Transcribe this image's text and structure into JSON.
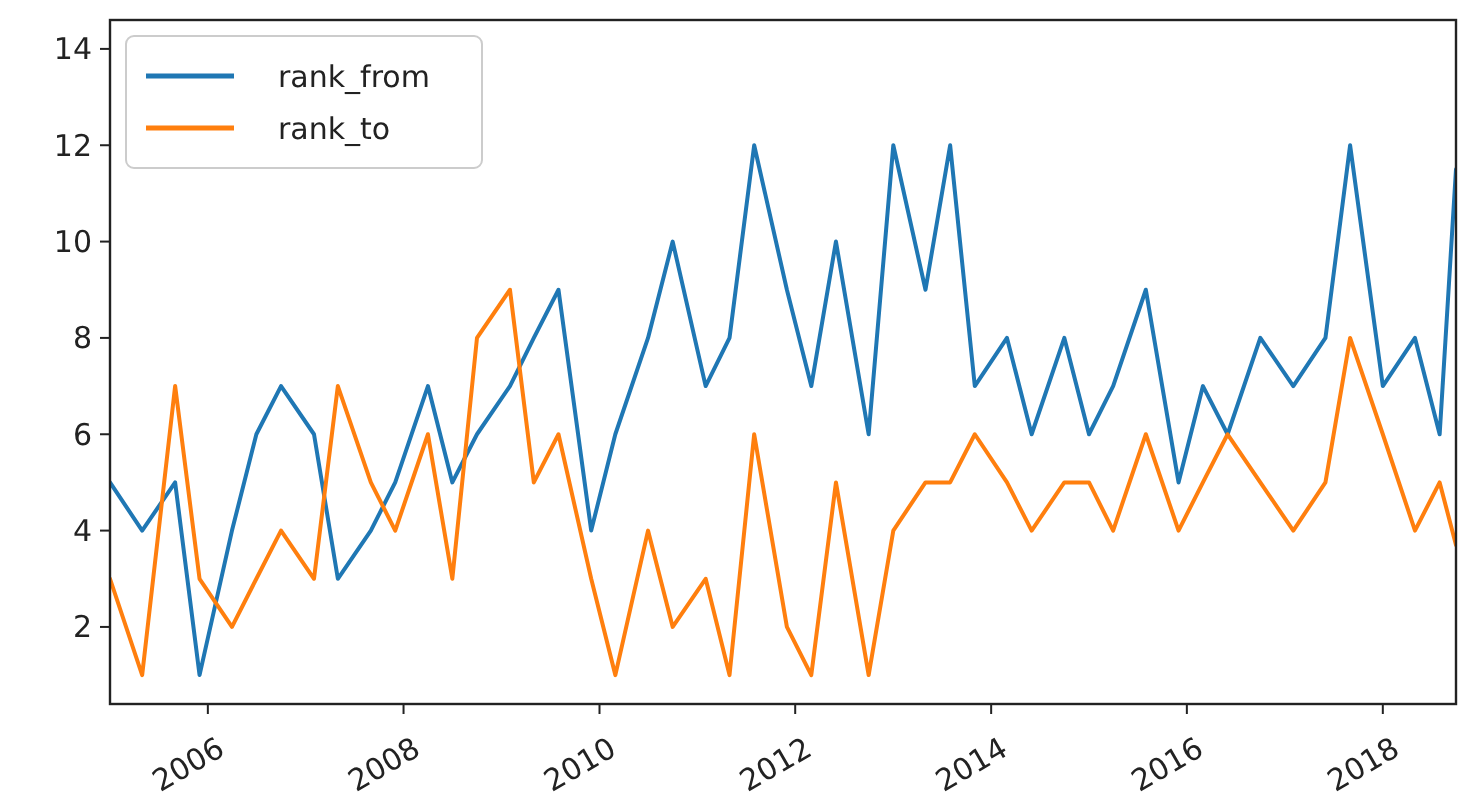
{
  "chart_data": {
    "type": "line",
    "x": [
      "2005-01",
      "2005-05",
      "2005-09",
      "2005-12",
      "2006-04",
      "2006-07",
      "2006-10",
      "2007-02",
      "2007-05",
      "2007-09",
      "2007-12",
      "2008-04",
      "2008-07",
      "2008-10",
      "2009-02",
      "2009-05",
      "2009-08",
      "2009-12",
      "2010-03",
      "2010-07",
      "2010-10",
      "2011-02",
      "2011-05",
      "2011-08",
      "2011-12",
      "2012-03",
      "2012-06",
      "2012-10",
      "2013-01",
      "2013-05",
      "2013-08",
      "2013-11",
      "2014-03",
      "2014-06",
      "2014-10",
      "2015-01",
      "2015-04",
      "2015-08",
      "2015-12",
      "2016-03",
      "2016-06",
      "2016-10",
      "2017-02",
      "2017-06",
      "2017-09",
      "2018-01",
      "2018-05",
      "2018-08",
      "2018-10"
    ],
    "series": [
      {
        "name": "rank_from",
        "color": "#1f77b4",
        "values": [
          5,
          4,
          5,
          1,
          4,
          6,
          7,
          6,
          3,
          4,
          5,
          7,
          5,
          6,
          7,
          8,
          9,
          4,
          6,
          8,
          10,
          7,
          8,
          12,
          9,
          7,
          10,
          6,
          12,
          9,
          12,
          7,
          8,
          6,
          8,
          6,
          7,
          9,
          5,
          7,
          6,
          8,
          7,
          8,
          12,
          7,
          8,
          6,
          11.5
        ]
      },
      {
        "name": "rank_to",
        "color": "#ff7f0e",
        "values": [
          3,
          1,
          7,
          3,
          2,
          3,
          4,
          3,
          7,
          5,
          4,
          6,
          3,
          8,
          9,
          5,
          6,
          3,
          1,
          4,
          2,
          3,
          1,
          6,
          2,
          1,
          5,
          1,
          4,
          5,
          5,
          6,
          5,
          4,
          5,
          5,
          4,
          6,
          4,
          5,
          6,
          5,
          4,
          5,
          8,
          6,
          4,
          5,
          3.7
        ]
      }
    ],
    "xlim": [
      "2005-01",
      "2018-10"
    ],
    "xticks": [
      "2006",
      "2008",
      "2010",
      "2012",
      "2014",
      "2016",
      "2018"
    ],
    "ylim": [
      0.4,
      14.6
    ],
    "yticks": [
      2,
      4,
      6,
      8,
      10,
      12,
      14
    ],
    "legend": "top left",
    "grid": false
  }
}
